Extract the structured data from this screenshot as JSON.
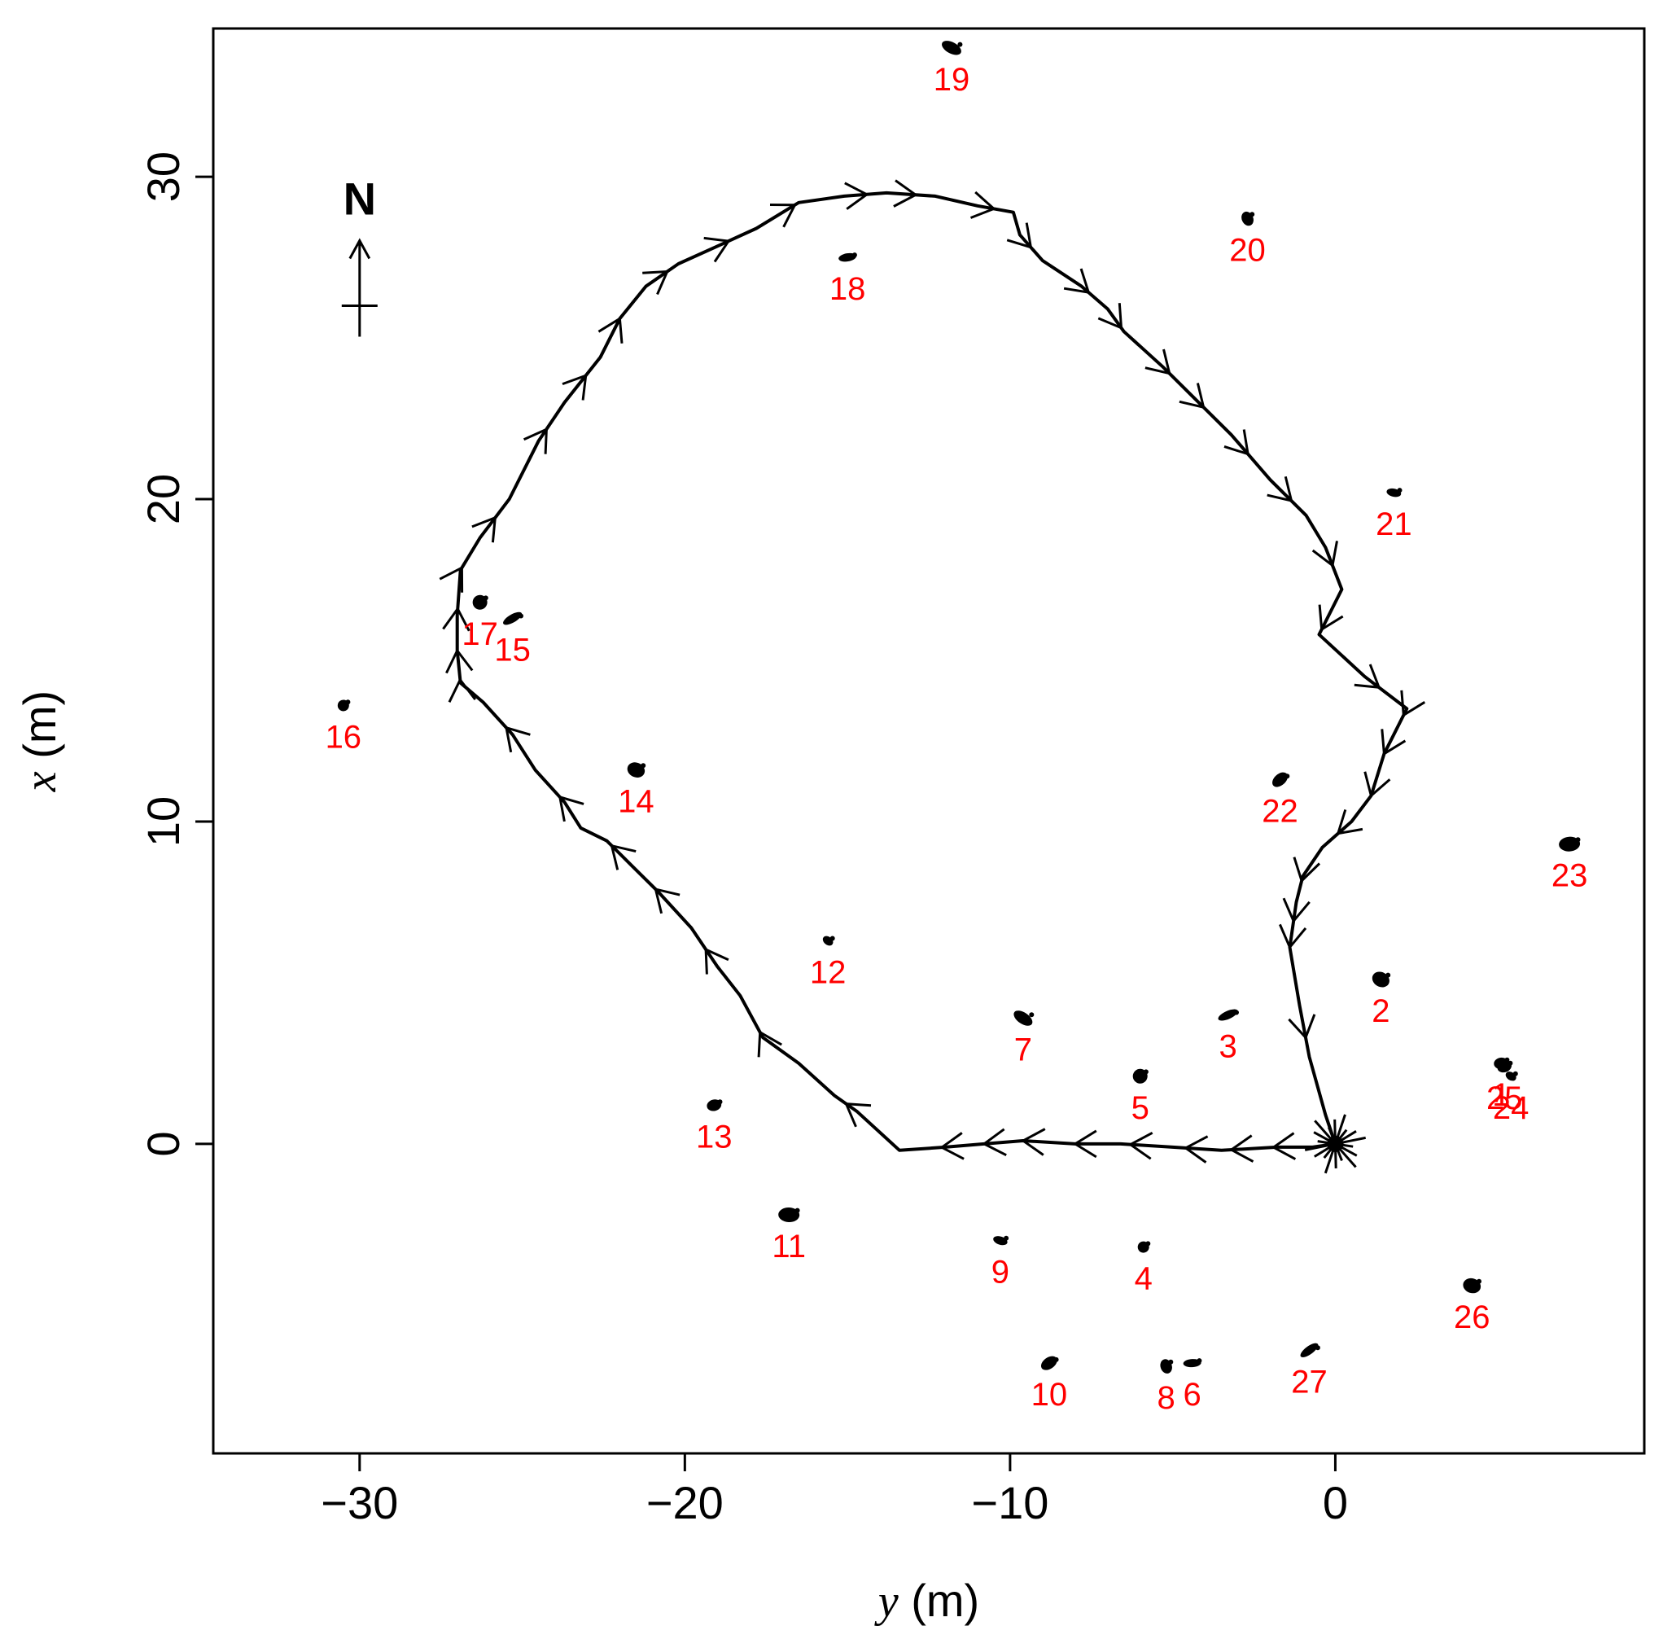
{
  "chart_data": {
    "type": "scatter",
    "xlabel": {
      "var": "y",
      "unit": " (m)"
    },
    "ylabel": {
      "var": "x",
      "unit": " (m)"
    },
    "xlim": [
      -34.5,
      9.5
    ],
    "ylim": [
      -9.6,
      34.6
    ],
    "x_ticks": [
      -30,
      -20,
      -10,
      0
    ],
    "y_ticks": [
      0,
      10,
      20,
      30
    ],
    "grid": false,
    "north_arrow": {
      "label": "N",
      "position": [
        -30,
        26
      ]
    },
    "trajectory": {
      "color": "#000000",
      "start": [
        0,
        0
      ],
      "points": [
        [
          0.0,
          0.0
        ],
        [
          -0.7,
          -0.1
        ],
        [
          -1.8,
          -0.1
        ],
        [
          -3.5,
          -0.2
        ],
        [
          -5.0,
          -0.1
        ],
        [
          -6.6,
          0.0
        ],
        [
          -8.0,
          0.0
        ],
        [
          -9.6,
          0.1
        ],
        [
          -10.8,
          0.0
        ],
        [
          -12.0,
          -0.1
        ],
        [
          -13.4,
          -0.2
        ],
        [
          -14.7,
          1.0
        ],
        [
          -15.4,
          1.5
        ],
        [
          -16.5,
          2.5
        ],
        [
          -17.6,
          3.3
        ],
        [
          -18.3,
          4.6
        ],
        [
          -19.0,
          5.5
        ],
        [
          -19.8,
          6.7
        ],
        [
          -20.8,
          7.8
        ],
        [
          -21.6,
          8.6
        ],
        [
          -22.4,
          9.4
        ],
        [
          -23.2,
          9.8
        ],
        [
          -23.7,
          10.6
        ],
        [
          -24.6,
          11.6
        ],
        [
          -25.3,
          12.7
        ],
        [
          -26.2,
          13.7
        ],
        [
          -26.9,
          14.3
        ],
        [
          -27.0,
          15.3
        ],
        [
          -27.0,
          16.4
        ],
        [
          -26.9,
          17.8
        ],
        [
          -26.3,
          18.8
        ],
        [
          -25.4,
          20.0
        ],
        [
          -24.5,
          21.8
        ],
        [
          -23.7,
          23.0
        ],
        [
          -22.6,
          24.4
        ],
        [
          -22.0,
          25.6
        ],
        [
          -21.2,
          26.6
        ],
        [
          -20.2,
          27.3
        ],
        [
          -19.1,
          27.8
        ],
        [
          -17.8,
          28.4
        ],
        [
          -16.5,
          29.2
        ],
        [
          -15.1,
          29.4
        ],
        [
          -13.8,
          29.5
        ],
        [
          -12.3,
          29.4
        ],
        [
          -11.0,
          29.1
        ],
        [
          -9.9,
          28.9
        ],
        [
          -9.7,
          28.2
        ],
        [
          -9.0,
          27.4
        ],
        [
          -7.8,
          26.6
        ],
        [
          -7.0,
          25.9
        ],
        [
          -6.5,
          25.2
        ],
        [
          -5.3,
          24.1
        ],
        [
          -4.2,
          23.0
        ],
        [
          -3.2,
          22.0
        ],
        [
          -2.0,
          20.6
        ],
        [
          -0.9,
          19.5
        ],
        [
          -0.3,
          18.5
        ],
        [
          0.2,
          17.2
        ],
        [
          -0.4,
          16.0
        ],
        [
          -0.5,
          15.8
        ],
        [
          0.9,
          14.5
        ],
        [
          2.2,
          13.5
        ],
        [
          1.5,
          12.1
        ],
        [
          1.1,
          10.8
        ],
        [
          0.5,
          10.0
        ],
        [
          -0.4,
          9.2
        ],
        [
          -1.0,
          8.3
        ],
        [
          -1.2,
          7.5
        ],
        [
          -1.4,
          6.1
        ],
        [
          -1.1,
          4.3
        ],
        [
          -0.8,
          2.7
        ],
        [
          -0.3,
          0.9
        ],
        [
          0.0,
          0.0
        ]
      ],
      "direction_arrows": [
        [
          -1.9,
          -0.11
        ],
        [
          -3.2,
          -0.15
        ],
        [
          -4.6,
          -0.13
        ],
        [
          -6.3,
          -0.02
        ],
        [
          -8.0,
          0.0
        ],
        [
          -9.6,
          0.1
        ],
        [
          -10.8,
          0.02
        ],
        [
          -12.1,
          -0.1
        ],
        [
          -15.0,
          1.3
        ],
        [
          -17.8,
          3.4
        ],
        [
          -19.4,
          6.0
        ],
        [
          -20.9,
          7.9
        ],
        [
          -22.2,
          9.3
        ],
        [
          -23.8,
          10.8
        ],
        [
          -25.5,
          12.9
        ],
        [
          -26.9,
          14.4
        ],
        [
          -27.0,
          15.3
        ],
        [
          -27.0,
          16.6
        ],
        [
          -26.9,
          17.9
        ],
        [
          -25.8,
          19.4
        ],
        [
          -24.3,
          22.2
        ],
        [
          -23.0,
          23.8
        ],
        [
          -22.0,
          25.6
        ],
        [
          -20.5,
          27.0
        ],
        [
          -18.7,
          28.1
        ],
        [
          -16.6,
          29.1
        ],
        [
          -14.4,
          29.4
        ],
        [
          -12.9,
          29.5
        ],
        [
          -10.5,
          29.0
        ],
        [
          -9.6,
          27.6
        ],
        [
          -7.6,
          26.4
        ],
        [
          -6.6,
          25.3
        ],
        [
          -5.1,
          23.9
        ],
        [
          -4.1,
          22.8
        ],
        [
          -2.8,
          21.3
        ],
        [
          -1.4,
          19.9
        ],
        [
          -0.2,
          17.9
        ],
        [
          -0.3,
          15.9
        ],
        [
          1.3,
          14.1
        ],
        [
          2.1,
          13.3
        ],
        [
          1.5,
          12.1
        ],
        [
          1.1,
          10.8
        ],
        [
          0.2,
          9.5
        ],
        [
          -0.8,
          8.1
        ],
        [
          -1.2,
          6.9
        ],
        [
          -1.4,
          6.1
        ],
        [
          -0.9,
          3.3
        ]
      ]
    },
    "landmarks": [
      {
        "label": "1",
        "y": 5.1,
        "x": 2.5
      },
      {
        "label": "2",
        "y": 1.4,
        "x": 5.1
      },
      {
        "label": "3",
        "y": -3.3,
        "x": 4.0
      },
      {
        "label": "4",
        "y": -5.9,
        "x": -3.2
      },
      {
        "label": "5",
        "y": -6.0,
        "x": 2.1
      },
      {
        "label": "6",
        "y": -4.4,
        "x": -6.8
      },
      {
        "label": "7",
        "y": -9.6,
        "x": 3.9
      },
      {
        "label": "8",
        "y": -5.2,
        "x": -6.9
      },
      {
        "label": "9",
        "y": -10.3,
        "x": -3.0
      },
      {
        "label": "10",
        "y": -8.8,
        "x": -6.8
      },
      {
        "label": "11",
        "y": -16.8,
        "x": -2.2
      },
      {
        "label": "12",
        "y": -15.6,
        "x": 6.3
      },
      {
        "label": "13",
        "y": -19.1,
        "x": 1.2
      },
      {
        "label": "14",
        "y": -21.5,
        "x": 11.6
      },
      {
        "label": "15",
        "y": -25.3,
        "x": 16.3
      },
      {
        "label": "16",
        "y": -30.5,
        "x": 13.6
      },
      {
        "label": "17",
        "y": -26.3,
        "x": 16.8
      },
      {
        "label": "18",
        "y": -15.0,
        "x": 27.5
      },
      {
        "label": "19",
        "y": -11.8,
        "x": 34.0
      },
      {
        "label": "20",
        "y": -2.7,
        "x": 28.7
      },
      {
        "label": "21",
        "y": 1.8,
        "x": 20.2
      },
      {
        "label": "22",
        "y": -1.7,
        "x": 11.3
      },
      {
        "label": "23",
        "y": 7.2,
        "x": 9.3
      },
      {
        "label": "24",
        "y": 5.4,
        "x": 2.1
      },
      {
        "label": "25",
        "y": 5.2,
        "x": 2.4
      },
      {
        "label": "26",
        "y": 4.2,
        "x": -4.4
      },
      {
        "label": "27",
        "y": -0.8,
        "x": -6.4
      }
    ],
    "landmark_color": "#000000",
    "label_color": "#ff0000"
  }
}
